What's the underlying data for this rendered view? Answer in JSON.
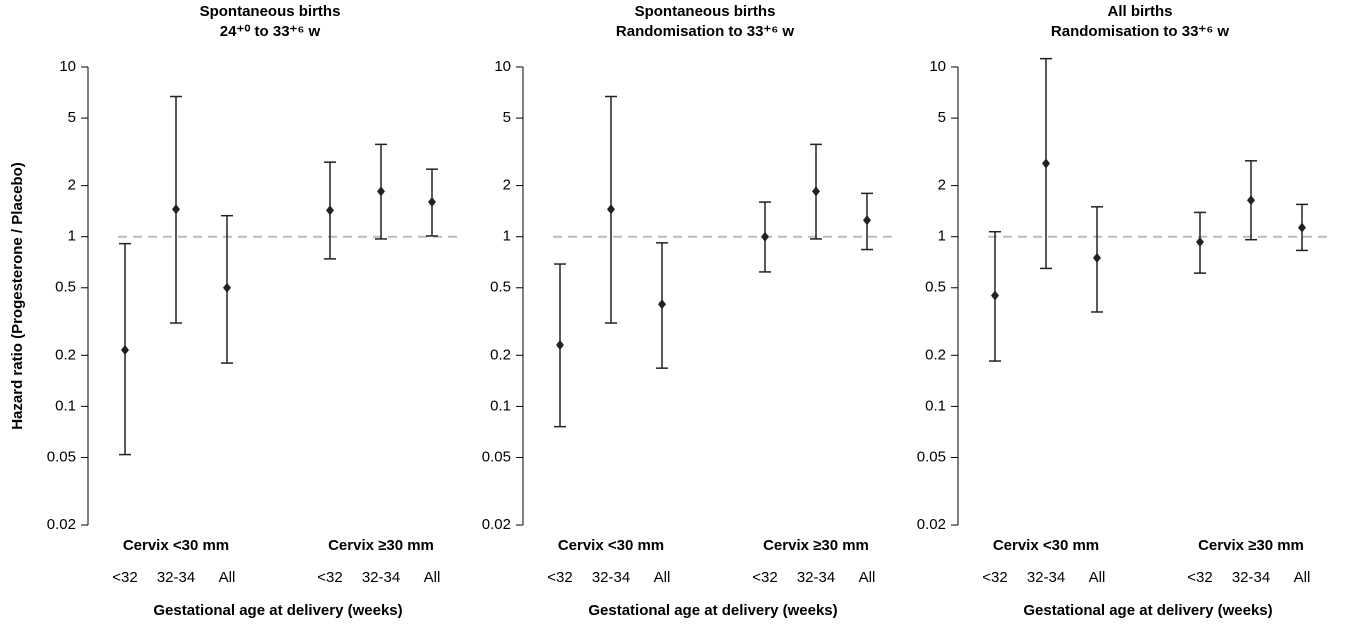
{
  "chart_data": [
    {
      "type": "errorbar",
      "title": "Spontaneous births",
      "subtitle": "24⁺⁰ to 33⁺⁶ w",
      "ylabel": "Hazard ratio (Progesterone / Placebo)",
      "xlabel": "Gestational age at delivery (weeks)",
      "log_y": true,
      "ylim": [
        0.02,
        10
      ],
      "yticks": [
        0.02,
        0.05,
        0.1,
        0.2,
        0.5,
        1,
        2,
        5,
        10
      ],
      "reference_line": 1,
      "color": "#222222",
      "groups": [
        {
          "name": "Cervix <30 mm",
          "categories": [
            "<32",
            "32-34",
            "All"
          ],
          "values": [
            0.215,
            1.45,
            0.5
          ],
          "lower": [
            0.052,
            0.31,
            0.18
          ],
          "upper": [
            0.91,
            6.7,
            1.33
          ]
        },
        {
          "name": "Cervix ≥30 mm",
          "categories": [
            "<32",
            "32-34",
            "All"
          ],
          "values": [
            1.43,
            1.85,
            1.6
          ],
          "lower": [
            0.74,
            0.97,
            1.01
          ],
          "upper": [
            2.75,
            3.5,
            2.5
          ]
        }
      ]
    },
    {
      "type": "errorbar",
      "title": "Spontaneous births",
      "subtitle": "Randomisation to 33⁺⁶ w",
      "xlabel": "Gestational age at delivery (weeks)",
      "log_y": true,
      "ylim": [
        0.02,
        10
      ],
      "yticks": [
        0.02,
        0.05,
        0.1,
        0.2,
        0.5,
        1,
        2,
        5,
        10
      ],
      "reference_line": 1,
      "color": "#222222",
      "groups": [
        {
          "name": "Cervix <30 mm",
          "categories": [
            "<32",
            "32-34",
            "All"
          ],
          "values": [
            0.23,
            1.45,
            0.4
          ],
          "lower": [
            0.076,
            0.31,
            0.168
          ],
          "upper": [
            0.69,
            6.7,
            0.92
          ]
        },
        {
          "name": "Cervix ≥30 mm",
          "categories": [
            "<32",
            "32-34",
            "All"
          ],
          "values": [
            1.0,
            1.85,
            1.25
          ],
          "lower": [
            0.62,
            0.97,
            0.84
          ],
          "upper": [
            1.6,
            3.5,
            1.8
          ]
        }
      ]
    },
    {
      "type": "errorbar",
      "title": "All births",
      "subtitle": "Randomisation to 33⁺⁶ w",
      "xlabel": "Gestational age at delivery (weeks)",
      "log_y": true,
      "ylim": [
        0.02,
        10
      ],
      "yticks": [
        0.02,
        0.05,
        0.1,
        0.2,
        0.5,
        1,
        2,
        5,
        10
      ],
      "reference_line": 1,
      "color": "#222222",
      "groups": [
        {
          "name": "Cervix <30 mm",
          "categories": [
            "<32",
            "32-34",
            "All"
          ],
          "values": [
            0.45,
            2.7,
            0.75
          ],
          "lower": [
            0.185,
            0.65,
            0.36
          ],
          "upper": [
            1.07,
            11.2,
            1.5
          ]
        },
        {
          "name": "Cervix ≥30 mm",
          "categories": [
            "<32",
            "32-34",
            "All"
          ],
          "values": [
            0.93,
            1.64,
            1.13
          ],
          "lower": [
            0.61,
            0.96,
            0.83
          ],
          "upper": [
            1.39,
            2.8,
            1.55
          ]
        }
      ]
    }
  ]
}
